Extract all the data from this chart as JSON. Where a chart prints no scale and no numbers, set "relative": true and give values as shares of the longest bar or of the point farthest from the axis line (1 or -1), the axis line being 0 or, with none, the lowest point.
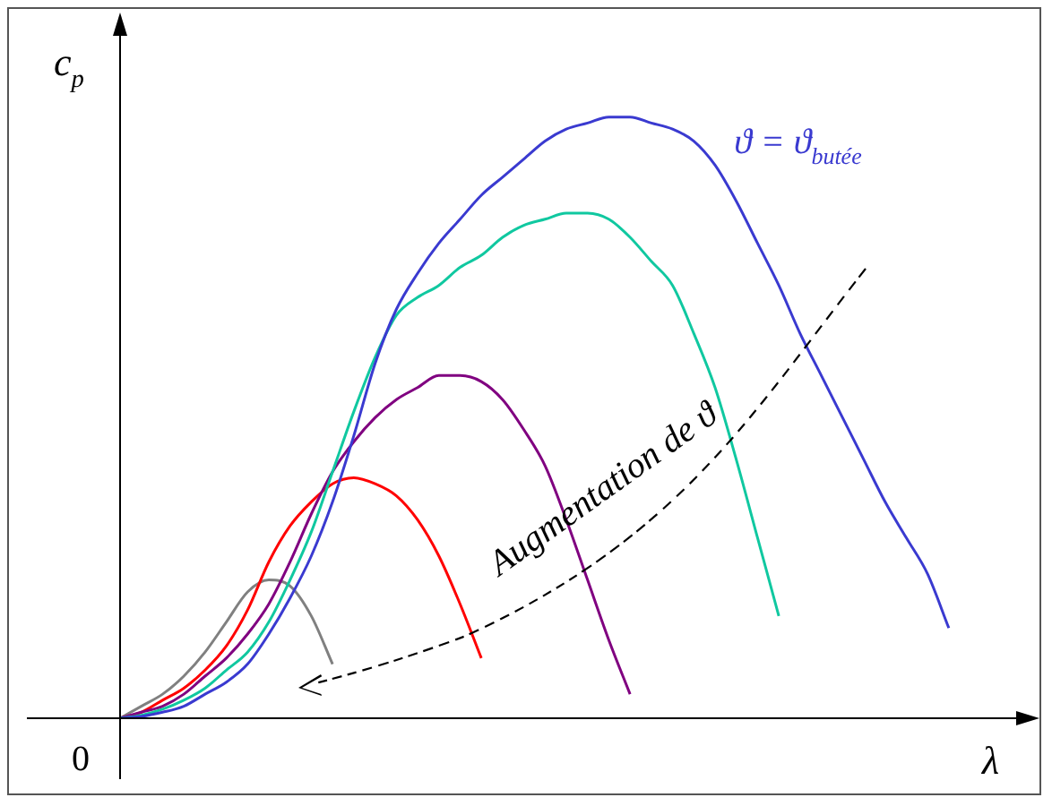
{
  "chart_data": {
    "type": "line",
    "relative": true,
    "xlabel": "λ",
    "ylabel": "c$_{p}$",
    "annotations": [
      "0",
      "Augmentation de ϑ"
    ],
    "categories": [
      null,
      null,
      null,
      null,
      null,
      null,
      null,
      null,
      null,
      null,
      null,
      null,
      null,
      null,
      null,
      null,
      null,
      null,
      null,
      null,
      null,
      null,
      null,
      null,
      null,
      null,
      null,
      null,
      null,
      null,
      null,
      null,
      null,
      null,
      null,
      null,
      null,
      null,
      null,
      null,
      null,
      null,
      null
    ],
    "series": [
      {
        "name": "ϑ = ϑ$_{butée}$",
        "color": "#3a3ad0",
        "values": [
          0,
          0.003,
          0.01,
          0.02,
          0.04,
          0.06,
          0.09,
          0.14,
          0.2,
          0.27,
          0.36,
          0.47,
          0.59,
          0.68,
          0.74,
          0.79,
          0.83,
          0.87,
          0.9,
          0.93,
          0.96,
          0.98,
          0.99,
          1,
          1,
          0.99,
          0.98,
          0.96,
          0.92,
          0.86,
          0.79,
          0.72,
          0.64,
          0.57,
          0.5,
          0.43,
          0.36,
          0.3,
          0.24,
          0.15,
          null,
          null,
          null
        ]
      },
      {
        "color": "#10c8a0",
        "values": [
          0,
          0.005,
          0.015,
          0.03,
          0.05,
          0.08,
          0.11,
          0.16,
          0.23,
          0.31,
          0.41,
          0.51,
          0.6,
          0.67,
          0.7,
          0.72,
          0.75,
          0.77,
          0.8,
          0.82,
          0.83,
          0.84,
          0.84,
          0.83,
          0.8,
          0.76,
          0.72,
          0.64,
          0.55,
          0.43,
          0.3,
          0.17,
          null,
          null,
          null,
          null,
          null,
          null,
          null,
          null,
          null,
          null,
          null
        ]
      },
      {
        "color": "#800080",
        "values": [
          0,
          0.01,
          0.02,
          0.04,
          0.07,
          0.1,
          0.14,
          0.19,
          0.26,
          0.34,
          0.41,
          0.46,
          0.5,
          0.53,
          0.55,
          0.57,
          0.57,
          0.56,
          0.53,
          0.48,
          0.42,
          0.33,
          0.23,
          0.13,
          0.04,
          null,
          null,
          null,
          null,
          null,
          null,
          null,
          null,
          null,
          null,
          null,
          null,
          null,
          null,
          null,
          null,
          null,
          null
        ]
      },
      {
        "color": "#ff0000",
        "values": [
          0,
          0.01,
          0.03,
          0.05,
          0.08,
          0.12,
          0.18,
          0.26,
          0.32,
          0.36,
          0.39,
          0.4,
          0.39,
          0.37,
          0.33,
          0.27,
          0.19,
          0.1,
          null,
          null,
          null,
          null,
          null,
          null,
          null,
          null,
          null,
          null,
          null,
          null,
          null,
          null,
          null,
          null,
          null,
          null,
          null,
          null,
          null,
          null,
          null,
          null,
          null
        ]
      },
      {
        "color": "#808080",
        "values": [
          0,
          0.02,
          0.04,
          0.07,
          0.11,
          0.16,
          0.21,
          0.23,
          0.22,
          0.17,
          0.09,
          null,
          null,
          null,
          null,
          null,
          null,
          null,
          null,
          null,
          null,
          null,
          null,
          null,
          null,
          null,
          null,
          null,
          null,
          null,
          null,
          null,
          null,
          null,
          null,
          null,
          null,
          null,
          null,
          null,
          null,
          null,
          null
        ]
      }
    ]
  }
}
